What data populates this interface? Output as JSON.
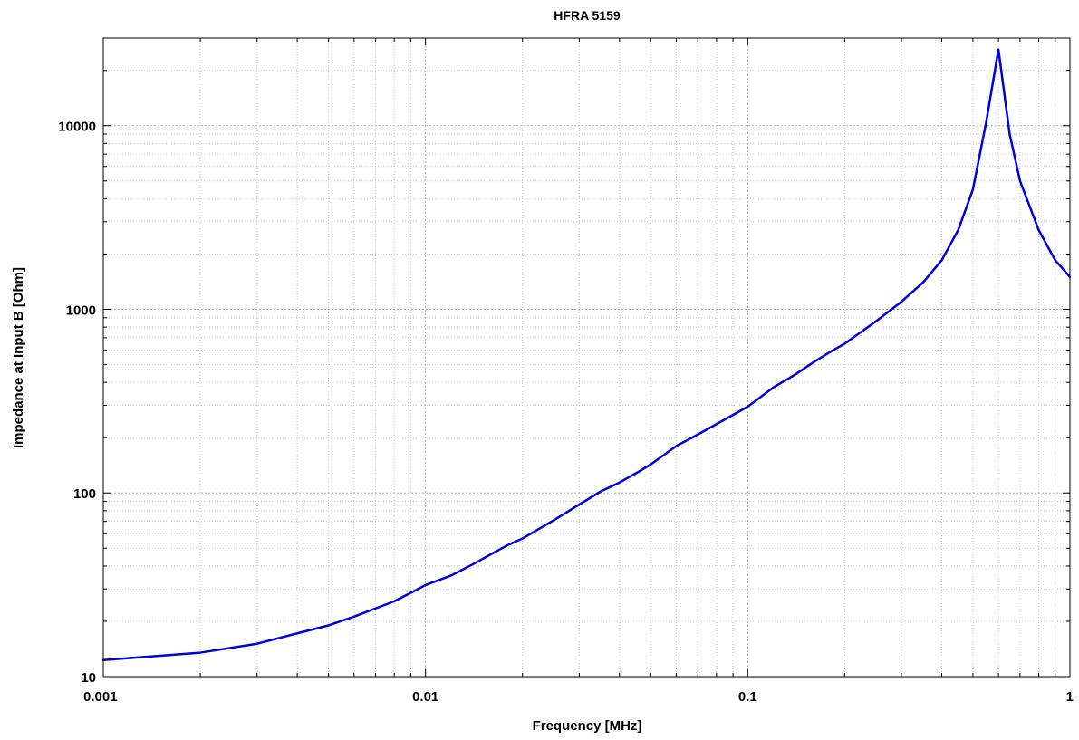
{
  "chart_data": {
    "type": "line",
    "title": "HFRA 5159",
    "xlabel": "Frequency [MHz]",
    "ylabel": "Impedance at Input B [Ohm]",
    "xscale": "log",
    "yscale": "log",
    "xlim": [
      0.001,
      1
    ],
    "ylim": [
      10,
      30000
    ],
    "grid": true,
    "line_color": "#0000dd",
    "x_ticks": [
      {
        "value": 0.001,
        "label": "0.001"
      },
      {
        "value": 0.01,
        "label": "0.01"
      },
      {
        "value": 0.1,
        "label": "0.1"
      },
      {
        "value": 1,
        "label": "1"
      }
    ],
    "y_ticks": [
      {
        "value": 10,
        "label": "10"
      },
      {
        "value": 100,
        "label": "100"
      },
      {
        "value": 1000,
        "label": "1000"
      },
      {
        "value": 10000,
        "label": "10000"
      }
    ],
    "series": [
      {
        "x": [
          0.001,
          0.002,
          0.003,
          0.004,
          0.005,
          0.006,
          0.007,
          0.008,
          0.009,
          0.01,
          0.012,
          0.014,
          0.016,
          0.018,
          0.02,
          0.025,
          0.03,
          0.035,
          0.04,
          0.045,
          0.05,
          0.06,
          0.07,
          0.08,
          0.09,
          0.1,
          0.12,
          0.14,
          0.16,
          0.18,
          0.2,
          0.25,
          0.3,
          0.35,
          0.4,
          0.45,
          0.5,
          0.55,
          0.6,
          0.65,
          0.7,
          0.8,
          0.9,
          1.0
        ],
        "y": [
          12.3,
          13.5,
          15.1,
          17.2,
          19.0,
          21.2,
          23.5,
          25.7,
          28.6,
          31.5,
          35.5,
          40.8,
          46.5,
          52.0,
          56.5,
          71.0,
          86.5,
          102.0,
          114.0,
          128.0,
          143.0,
          180.0,
          208.0,
          237.0,
          266.0,
          295.0,
          375.0,
          440.0,
          515.0,
          585.0,
          650.0,
          860.0,
          1100.0,
          1400.0,
          1850.0,
          2700.0,
          4500.0,
          10500.0,
          26000.0,
          9000.0,
          5000.0,
          2700.0,
          1850.0,
          1500.0
        ]
      }
    ]
  }
}
